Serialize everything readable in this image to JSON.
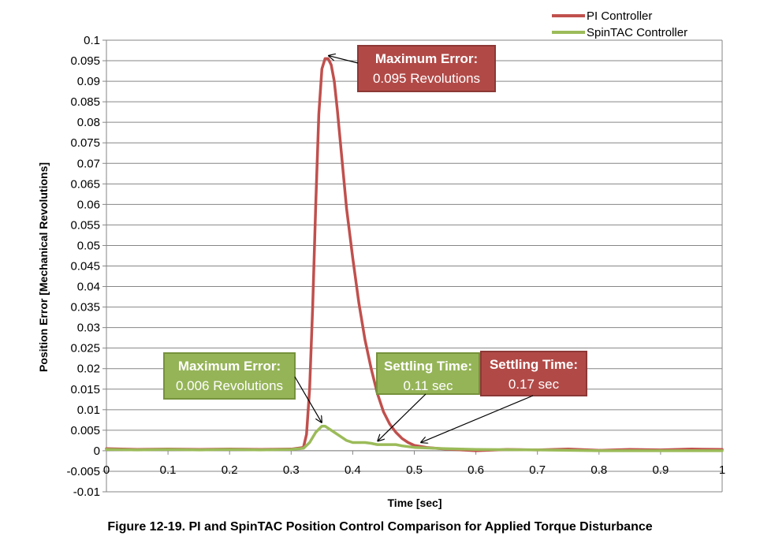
{
  "figure_caption": "Figure 12-19. PI and SpinTAC Position Control Comparison for Applied Torque Disturbance",
  "colors": {
    "pi": "#C0504D",
    "pi_box": "#B14A47",
    "pi_border": "#8C3836",
    "spintac": "#9BBB59",
    "spintac_box": "#95B458",
    "spintac_border": "#76923C"
  },
  "chart_data": {
    "type": "line",
    "xlabel": "Time [sec]",
    "ylabel": "Position Error [Mechanical Revolutions]",
    "xlim": [
      0,
      1
    ],
    "ylim": [
      -0.01,
      0.1
    ],
    "x_ticks": [
      "0",
      "0.1",
      "0.2",
      "0.3",
      "0.4",
      "0.5",
      "0.6",
      "0.7",
      "0.8",
      "0.9",
      "1"
    ],
    "y_ticks": [
      "0.1",
      "0.095",
      "0.09",
      "0.085",
      "0.08",
      "0.075",
      "0.07",
      "0.065",
      "0.06",
      "0.055",
      "0.05",
      "0.045",
      "0.04",
      "0.035",
      "0.03",
      "0.025",
      "0.02",
      "0.015",
      "0.01",
      "0.005",
      "0",
      "-0.005",
      "-0.01"
    ],
    "grid": "horizontal",
    "legend_position": "top-right",
    "series": [
      {
        "name": "PI Controller",
        "color": "#C0504D",
        "x": [
          0,
          0.05,
          0.1,
          0.15,
          0.2,
          0.25,
          0.3,
          0.32,
          0.325,
          0.33,
          0.335,
          0.34,
          0.345,
          0.35,
          0.355,
          0.36,
          0.365,
          0.37,
          0.375,
          0.38,
          0.385,
          0.39,
          0.4,
          0.41,
          0.42,
          0.43,
          0.44,
          0.45,
          0.46,
          0.47,
          0.48,
          0.49,
          0.5,
          0.52,
          0.55,
          0.6,
          0.65,
          0.7,
          0.75,
          0.8,
          0.85,
          0.9,
          0.95,
          1.0
        ],
        "y": [
          0.0005,
          0.0003,
          0.0004,
          0.0003,
          0.0004,
          0.0003,
          0.0004,
          0.0008,
          0.004,
          0.015,
          0.035,
          0.06,
          0.082,
          0.093,
          0.0955,
          0.0955,
          0.094,
          0.09,
          0.083,
          0.075,
          0.067,
          0.059,
          0.047,
          0.036,
          0.027,
          0.02,
          0.014,
          0.0095,
          0.0065,
          0.0045,
          0.003,
          0.002,
          0.0013,
          0.0008,
          0.0004,
          0.0,
          0.0003,
          0.0002,
          0.0004,
          0.0001,
          0.0003,
          0.0002,
          0.0004,
          0.0003
        ]
      },
      {
        "name": "SpinTAC Controller",
        "color": "#9BBB59",
        "x": [
          0,
          0.05,
          0.1,
          0.15,
          0.2,
          0.25,
          0.3,
          0.32,
          0.33,
          0.34,
          0.35,
          0.355,
          0.36,
          0.37,
          0.38,
          0.39,
          0.4,
          0.42,
          0.43,
          0.44,
          0.47,
          0.48,
          0.5,
          0.55,
          0.6,
          0.7,
          0.8,
          0.9,
          1.0
        ],
        "y": [
          0.0003,
          0.0002,
          0.0003,
          0.0002,
          0.0003,
          0.0002,
          0.0003,
          0.0006,
          0.002,
          0.0045,
          0.006,
          0.006,
          0.0055,
          0.0045,
          0.0035,
          0.0025,
          0.002,
          0.002,
          0.0018,
          0.0015,
          0.0015,
          0.0012,
          0.0008,
          0.0005,
          0.0003,
          0.0002,
          0.0,
          0.0,
          0.0
        ]
      }
    ],
    "annotations": [
      {
        "line1": "Maximum Error:",
        "line2": "0.095 Revolutions",
        "series": "PI Controller",
        "points_to": [
          0.36,
          0.0955
        ]
      },
      {
        "line1": "Maximum Error:",
        "line2": "0.006 Revolutions",
        "series": "SpinTAC Controller",
        "points_to": [
          0.35,
          0.006
        ]
      },
      {
        "line1": "Settling Time:",
        "line2": "0.11 sec",
        "series": "SpinTAC Controller",
        "points_to": [
          0.44,
          0.0015
        ]
      },
      {
        "line1": "Settling Time:",
        "line2": "0.17 sec",
        "series": "PI Controller",
        "points_to": [
          0.51,
          0.0012
        ]
      }
    ]
  }
}
